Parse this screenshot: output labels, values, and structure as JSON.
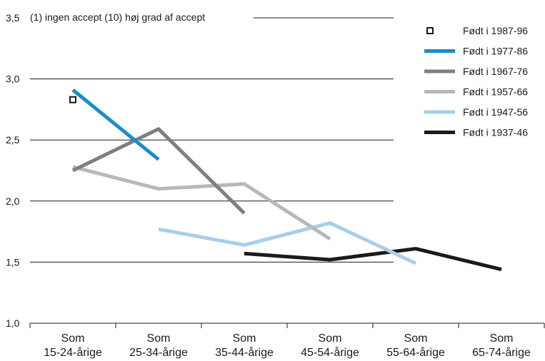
{
  "chart_data": {
    "type": "line",
    "title": "(1) ingen accept  (10) høj grad af accept",
    "xlabel": "",
    "ylabel": "",
    "ylim": [
      1.0,
      3.5
    ],
    "yticks": [
      "1,0",
      "1,5",
      "2,0",
      "2,5",
      "3,0",
      "3,5"
    ],
    "categories": [
      [
        "Som",
        "15-24-årige"
      ],
      [
        "Som",
        "25-34-årige"
      ],
      [
        "Som",
        "35-44-årige"
      ],
      [
        "Som",
        "45-54-årige"
      ],
      [
        "Som",
        "55-64-årige"
      ],
      [
        "Som",
        "65-74-årige"
      ]
    ],
    "grid": "horizontal",
    "legend_position": "top-right",
    "series": [
      {
        "name": "Født i 1987-96",
        "color": "#1a1a1a",
        "marker": "square",
        "values": [
          2.83,
          null,
          null,
          null,
          null,
          null
        ]
      },
      {
        "name": "Født i 1977-86",
        "color": "#1a8ccb",
        "values": [
          2.91,
          2.34,
          null,
          null,
          null,
          null
        ]
      },
      {
        "name": "Født i 1967-76",
        "color": "#7f7f7f",
        "values": [
          2.25,
          2.59,
          1.9,
          null,
          null,
          null
        ]
      },
      {
        "name": "Født i 1957-66",
        "color": "#b8b8b8",
        "values": [
          2.28,
          2.1,
          2.14,
          1.69,
          null,
          null
        ]
      },
      {
        "name": "Født i 1947-56",
        "color": "#a6cfea",
        "values": [
          null,
          1.77,
          1.64,
          1.82,
          1.49,
          null
        ]
      },
      {
        "name": "Født i 1937-46",
        "color": "#1a1a1a",
        "values": [
          null,
          null,
          1.57,
          1.52,
          1.61,
          1.44
        ]
      }
    ]
  }
}
